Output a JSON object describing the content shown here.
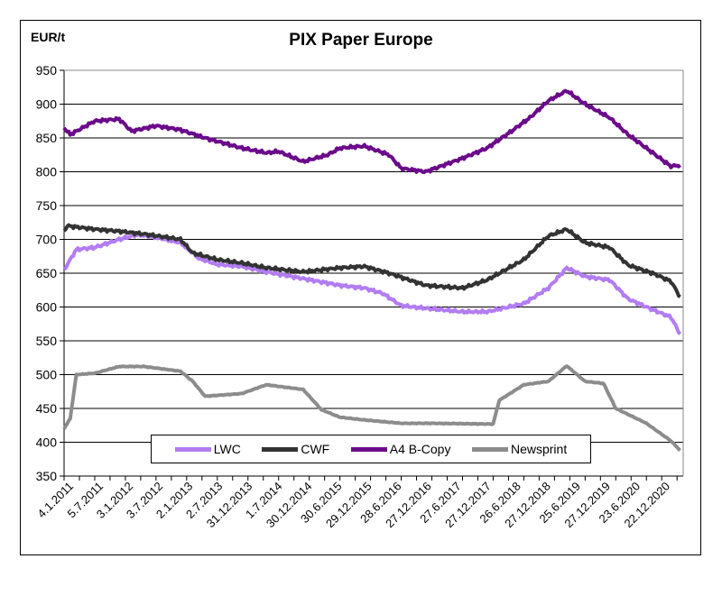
{
  "chart_data": {
    "type": "line",
    "title": "PIX Paper Europe",
    "ylabel": "EUR/t",
    "xlabel": "",
    "ylim": [
      350,
      950
    ],
    "yticks": [
      350,
      400,
      450,
      500,
      550,
      600,
      650,
      700,
      750,
      800,
      850,
      900,
      950
    ],
    "xlim": [
      2011.0,
      2021.1
    ],
    "xtick_labels": [
      "4.1.2011",
      "5.7.2011",
      "3.1.2012",
      "3.7.2012",
      "2.1.2013",
      "2.7.2013",
      "31.12.2013",
      "1.7.2014",
      "30.12.2014",
      "30.6.2015",
      "29.12.2015",
      "28.6.2016",
      "27.12.2016",
      "27.6.2017",
      "27.12.2017",
      "26.6.2018",
      "27.12.2018",
      "25.6.2019",
      "27.12.2019",
      "23.6.2020",
      "22.12.2020"
    ],
    "grid": true,
    "legend_position": "bottom",
    "series": [
      {
        "name": "LWC",
        "color": "#b27cf2",
        "x": [
          2011.0,
          2011.2,
          2011.5,
          2011.9,
          2012.2,
          2012.5,
          2012.9,
          2013.2,
          2013.5,
          2013.9,
          2014.3,
          2014.9,
          2015.5,
          2015.9,
          2016.2,
          2016.5,
          2016.9,
          2017.5,
          2017.9,
          2018.5,
          2018.9,
          2019.2,
          2019.5,
          2019.9,
          2020.2,
          2020.5,
          2020.9,
          2021.05
        ],
        "values": [
          655,
          685,
          688,
          700,
          707,
          703,
          695,
          672,
          663,
          660,
          652,
          642,
          632,
          628,
          620,
          602,
          598,
          593,
          593,
          605,
          628,
          658,
          645,
          640,
          612,
          600,
          585,
          560
        ]
      },
      {
        "name": "CWF",
        "color": "#333333",
        "x": [
          2011.0,
          2011.05,
          2011.5,
          2011.9,
          2012.3,
          2012.9,
          2013.1,
          2013.5,
          2013.9,
          2014.3,
          2014.9,
          2015.5,
          2015.9,
          2016.3,
          2016.9,
          2017.5,
          2017.9,
          2018.5,
          2018.9,
          2019.2,
          2019.5,
          2019.9,
          2020.2,
          2020.6,
          2020.9,
          2021.05
        ],
        "values": [
          712,
          720,
          715,
          712,
          708,
          700,
          680,
          670,
          665,
          658,
          652,
          658,
          660,
          650,
          632,
          628,
          640,
          670,
          705,
          715,
          695,
          688,
          662,
          650,
          638,
          615
        ]
      },
      {
        "name": "A4 B-Copy",
        "color": "#6b0a8a",
        "x": [
          2011.0,
          2011.1,
          2011.5,
          2011.9,
          2012.1,
          2012.5,
          2012.9,
          2013.3,
          2013.5,
          2013.9,
          2014.3,
          2014.5,
          2014.9,
          2015.3,
          2015.5,
          2015.9,
          2016.3,
          2016.5,
          2016.9,
          2017.2,
          2017.5,
          2017.9,
          2018.3,
          2018.6,
          2018.9,
          2019.2,
          2019.5,
          2019.9,
          2020.2,
          2020.5,
          2020.9,
          2021.05
        ],
        "values": [
          865,
          855,
          875,
          878,
          860,
          868,
          862,
          850,
          845,
          835,
          828,
          830,
          815,
          825,
          835,
          838,
          825,
          805,
          800,
          810,
          820,
          835,
          860,
          880,
          905,
          920,
          900,
          880,
          855,
          835,
          808,
          810
        ]
      },
      {
        "name": "Newsprint",
        "color": "#8c8c8c",
        "x": [
          2011.0,
          2011.1,
          2011.2,
          2011.5,
          2011.9,
          2012.3,
          2012.9,
          2013.1,
          2013.3,
          2013.9,
          2014.3,
          2014.9,
          2015.2,
          2015.5,
          2015.9,
          2016.5,
          2017.0,
          2017.9,
          2018.0,
          2018.1,
          2018.5,
          2018.9,
          2019.2,
          2019.5,
          2019.8,
          2020.0,
          2020.5,
          2020.9,
          2021.05
        ],
        "values": [
          420,
          435,
          500,
          502,
          512,
          512,
          505,
          490,
          468,
          472,
          485,
          478,
          448,
          437,
          433,
          428,
          428,
          427,
          427,
          462,
          485,
          490,
          513,
          490,
          487,
          450,
          428,
          402,
          388
        ]
      }
    ]
  }
}
